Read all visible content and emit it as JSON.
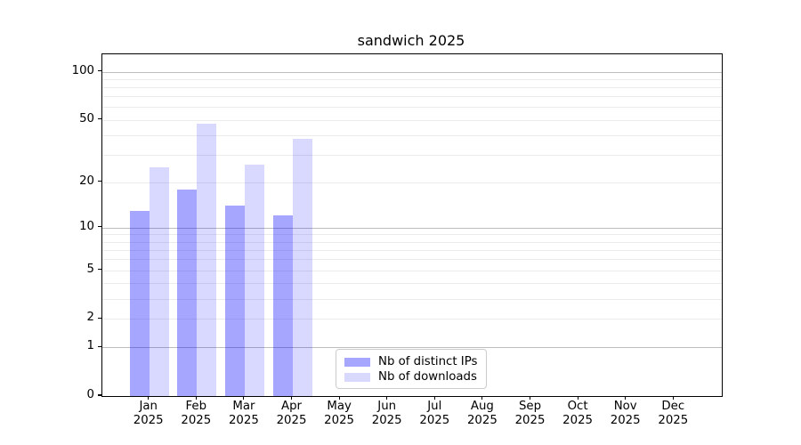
{
  "chart_data": {
    "type": "bar",
    "title": "sandwich 2025",
    "months": [
      "Jan",
      "Feb",
      "Mar",
      "Apr",
      "May",
      "Jun",
      "Jul",
      "Aug",
      "Sep",
      "Oct",
      "Nov",
      "Dec"
    ],
    "year": "2025",
    "series": [
      {
        "name": "Nb of distinct IPs",
        "color": "rgba(0,0,255,0.35)",
        "color_hex": "#a6a6ff",
        "values": [
          13,
          18,
          14,
          12,
          null,
          null,
          null,
          null,
          null,
          null,
          null,
          null
        ]
      },
      {
        "name": "Nb of downloads",
        "color": "rgba(0,0,255,0.15)",
        "color_hex": "#d9d9ff",
        "values": [
          25,
          47,
          26,
          38,
          null,
          null,
          null,
          null,
          null,
          null,
          null,
          null
        ]
      }
    ],
    "yscale": "log1p",
    "yticks": [
      0,
      1,
      2,
      5,
      10,
      20,
      50,
      100
    ],
    "ylim": [
      0,
      126
    ],
    "grid": {
      "major_lines": [
        1,
        10,
        100
      ],
      "minor_lines": [
        2,
        3,
        4,
        5,
        6,
        7,
        8,
        9,
        20,
        30,
        40,
        50,
        60,
        70,
        80,
        90
      ],
      "major_color": "#bdbdbd",
      "minor_color": "#ebebeb"
    },
    "legend_position": "lower center",
    "axis_color": "#000000",
    "background_color": "#ffffff"
  }
}
